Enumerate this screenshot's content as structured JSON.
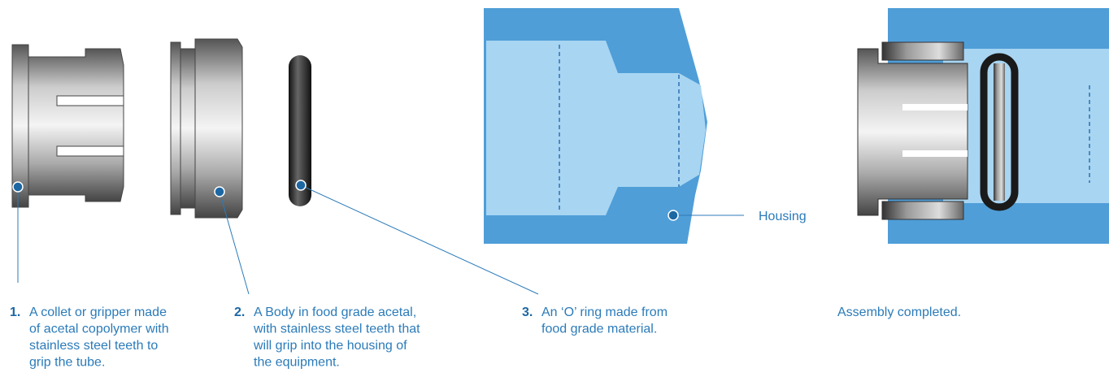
{
  "housing_label": "Housing",
  "parts": [
    {
      "number": "1.",
      "lines": [
        "A collet or gripper made",
        "of acetal copolymer with",
        "stainless steel teeth to",
        "grip the tube."
      ]
    },
    {
      "number": "2.",
      "lines": [
        "A Body in food grade acetal,",
        "with stainless steel teeth that",
        "will grip into the housing of",
        "the equipment."
      ]
    },
    {
      "number": "3.",
      "lines": [
        "An ‘O’ ring made from",
        "food grade material."
      ]
    }
  ],
  "assembly_caption": "Assembly completed."
}
